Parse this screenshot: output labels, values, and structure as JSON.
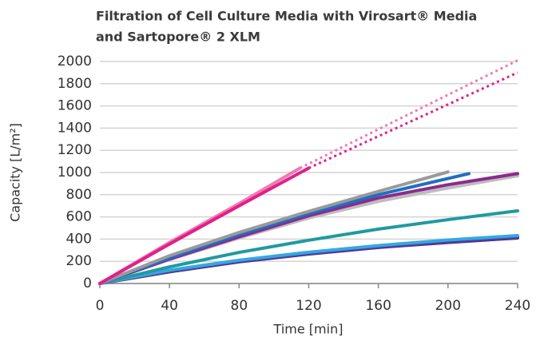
{
  "chart_data": {
    "type": "line",
    "title": [
      "Filtration of Cell Culture Media with Virosart® Media",
      "and Sartopore® 2 XLM"
    ],
    "x_label": "Time [min]",
    "y_label": "Capacity [L/m²]",
    "xlim": [
      0,
      240
    ],
    "xticks": [
      0,
      40,
      80,
      120,
      160,
      200,
      240
    ],
    "ylim": [
      0,
      2000
    ],
    "yticks": [
      0,
      200,
      400,
      600,
      800,
      1000,
      1200,
      1400,
      1600,
      1800,
      2000
    ],
    "grid": true,
    "series": [
      {
        "color": "#5a2a7a",
        "x": [
          0,
          40,
          80,
          120,
          160,
          200,
          240
        ],
        "values": [
          0,
          105,
          195,
          265,
          325,
          370,
          410
        ]
      },
      {
        "color": "#4a3fa5",
        "x": [
          0,
          40,
          80,
          120,
          160,
          200,
          240
        ],
        "values": [
          0,
          110,
          200,
          270,
          330,
          378,
          418
        ]
      },
      {
        "color": "#35a8e0",
        "x": [
          0,
          40,
          80,
          120,
          160,
          200,
          240
        ],
        "values": [
          0,
          120,
          210,
          282,
          342,
          392,
          432
        ]
      },
      {
        "color": "#1f9aa0",
        "x": [
          0,
          40,
          80,
          120,
          160,
          200,
          240
        ],
        "values": [
          0,
          150,
          280,
          390,
          490,
          575,
          655
        ]
      },
      {
        "color": "#bdbdbd",
        "x": [
          0,
          40,
          80,
          120,
          160,
          200,
          240
        ],
        "values": [
          0,
          215,
          410,
          590,
          740,
          860,
          970
        ]
      },
      {
        "color": "#8b2a8e",
        "x": [
          0,
          40,
          80,
          120,
          160,
          200,
          240
        ],
        "values": [
          0,
          220,
          420,
          610,
          770,
          890,
          990
        ]
      },
      {
        "color": "#1f6fc0",
        "x": [
          0,
          40,
          80,
          120,
          160,
          212
        ],
        "values": [
          0,
          230,
          440,
          630,
          800,
          990
        ]
      },
      {
        "color": "#9a9a9a",
        "x": [
          0,
          40,
          80,
          120,
          160,
          200
        ],
        "values": [
          0,
          250,
          460,
          650,
          830,
          1005
        ]
      },
      {
        "color": "#f07ab0",
        "dashed": true,
        "x": [
          115,
          240
        ],
        "values": [
          1040,
          2010
        ]
      },
      {
        "color": "#e0208a",
        "dashed": true,
        "x": [
          120,
          240
        ],
        "values": [
          1040,
          1900
        ]
      },
      {
        "color": "#f07ab0",
        "x": [
          0,
          40,
          80,
          115
        ],
        "values": [
          0,
          370,
          720,
          1040
        ]
      },
      {
        "color": "#e0208a",
        "x": [
          0,
          40,
          80,
          120
        ],
        "values": [
          0,
          355,
          700,
          1040
        ]
      }
    ]
  }
}
